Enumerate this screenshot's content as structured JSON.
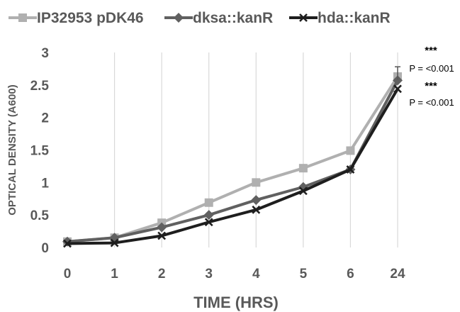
{
  "chart_data": {
    "type": "line",
    "categories": [
      "0",
      "1",
      "2",
      "3",
      "4",
      "5",
      "6",
      "24"
    ],
    "xlabel": "TIME (HRS)",
    "ylabel": "OPTICAL DENSITY (A600)",
    "ylim": [
      0,
      3
    ],
    "yticks": [
      "0",
      "0.5",
      "1",
      "1.5",
      "2",
      "2.5",
      "3"
    ],
    "grid": "vertical",
    "legend_position": "top",
    "series": [
      {
        "name": "IP32953 pDK46",
        "color": "#b0b0b0",
        "marker": "square",
        "values": [
          0.09,
          0.15,
          0.38,
          0.69,
          1.0,
          1.22,
          1.49,
          2.63
        ]
      },
      {
        "name": "dksa::kanR",
        "color": "#606060",
        "marker": "diamond",
        "values": [
          0.09,
          0.15,
          0.31,
          0.5,
          0.73,
          0.93,
          1.2,
          2.57
        ]
      },
      {
        "name": "hda::kanR",
        "color": "#1e1e1e",
        "marker": "x",
        "values": [
          0.06,
          0.07,
          0.18,
          0.39,
          0.58,
          0.87,
          1.2,
          2.44
        ]
      }
    ],
    "error_bar": {
      "category": "24",
      "low": 2.58,
      "high": 2.78
    },
    "annotations": [
      {
        "stars": "***",
        "text": "P = <0.001"
      },
      {
        "stars": "***",
        "text": "P = <0.001"
      }
    ]
  }
}
